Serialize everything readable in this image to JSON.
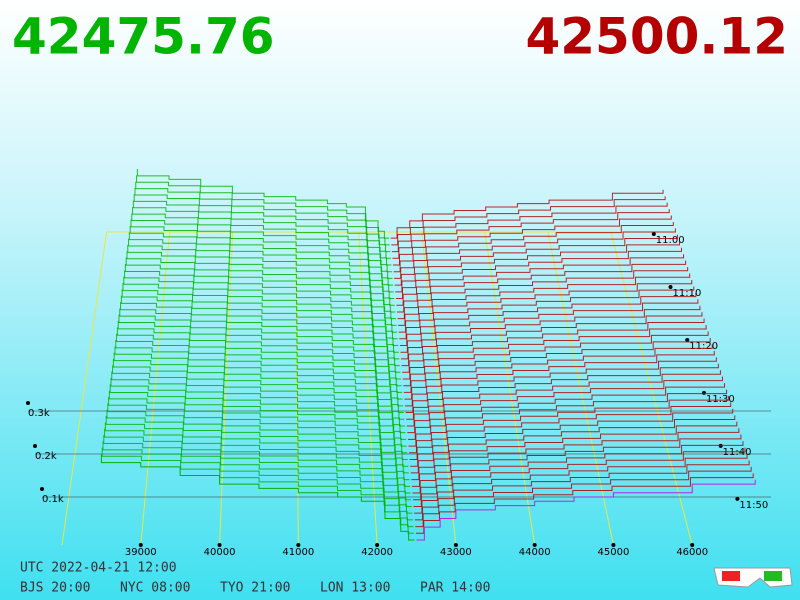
{
  "header": {
    "bid_price": "42475.76",
    "ask_price": "42500.12"
  },
  "chart_data": {
    "type": "depth3d",
    "bids": {
      "color": "#00b400",
      "x": [
        42475,
        42400,
        42300,
        42100,
        41800,
        41500,
        41000,
        40500,
        40000,
        39500,
        39000,
        38500
      ],
      "values": [
        0,
        0.02,
        0.05,
        0.09,
        0.1,
        0.11,
        0.12,
        0.13,
        0.15,
        0.17,
        0.18,
        0.2
      ]
    },
    "asks": {
      "color": "#b40000",
      "x": [
        42500,
        42600,
        42800,
        43000,
        43500,
        44000,
        44500,
        45000,
        46000,
        46800
      ],
      "values": [
        0,
        0.03,
        0.05,
        0.07,
        0.08,
        0.09,
        0.1,
        0.11,
        0.13,
        0.14
      ]
    },
    "xlim": [
      38000,
      47000
    ],
    "xticks": [
      39000,
      40000,
      41000,
      42000,
      43000,
      44000,
      45000,
      46000
    ],
    "zlim": [
      0,
      0.4
    ],
    "zticks": [
      {
        "value": 0.1,
        "label": "0.1k"
      },
      {
        "value": 0.2,
        "label": "0.2k"
      },
      {
        "value": 0.3,
        "label": "0.3k"
      }
    ],
    "time_labels": [
      "11:00",
      "11:10",
      "11:20",
      "11:30",
      "11:40",
      "11:50"
    ]
  },
  "footer": {
    "utc": "UTC 2022-04-21 12:00",
    "zones": [
      "BJS 20:00",
      "NYC 08:00",
      "TYO 21:00",
      "LON 13:00",
      "PAR 14:00"
    ]
  }
}
